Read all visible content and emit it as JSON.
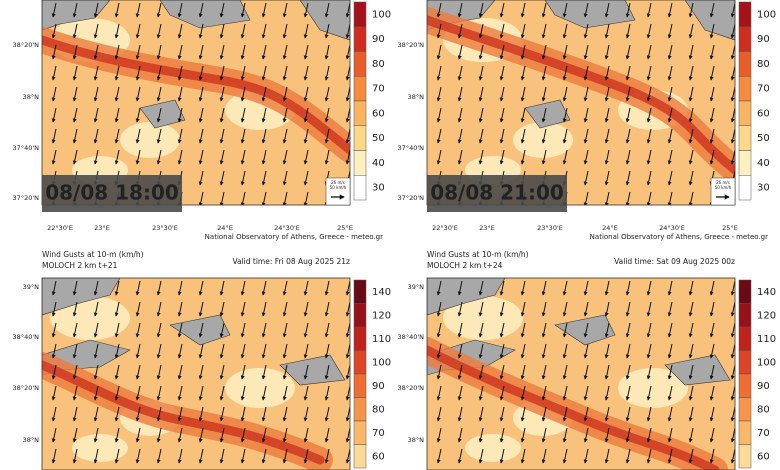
{
  "panels": [
    {
      "timestamp": "08/08 18:00",
      "credit": "National Observatory of Athens, Greece - meteo.gr",
      "lat_labels": [
        "38°20'N",
        "38°N",
        "37°40'N",
        "37°20'N"
      ],
      "lon_labels": [
        "22°30'E",
        "23°E",
        "23°30'E",
        "24°E",
        "24°30'E",
        "25°E"
      ],
      "colorbar": [
        100,
        90,
        80,
        70,
        60,
        50,
        40,
        30
      ],
      "legend": [
        "26 m/s",
        "50 km/h"
      ]
    },
    {
      "timestamp": "08/08 21:00",
      "credit": "National Observatory of Athens, Greece - meteo.gr",
      "lat_labels": [
        "38°20'N",
        "38°N",
        "37°40'N",
        "37°20'N"
      ],
      "lon_labels": [
        "22°30'E",
        "23°E",
        "23°30'E",
        "24°E",
        "24°30'E",
        "25°E"
      ],
      "colorbar": [
        100,
        90,
        80,
        70,
        60,
        50,
        40,
        30
      ],
      "legend": [
        "26 m/s",
        "50 km/h"
      ]
    },
    {
      "title": "Wind Gusts at 10-m (km/h)",
      "model": "MOLOCH 2 km t+21",
      "valid": "Valid time: Fri 08 Aug 2025 21z",
      "lat_labels": [
        "39°N",
        "38°40'N",
        "38°20'N",
        "38°N"
      ],
      "colorbar": [
        140,
        120,
        110,
        100,
        90,
        80,
        70,
        60
      ]
    },
    {
      "title": "Wind Gusts at 10-m (km/h)",
      "model": "MOLOCH 2 km t+24",
      "valid": "Valid time: Sat 09 Aug 2025 00z",
      "lat_labels": [
        "39°N",
        "38°40'N",
        "38°20'N",
        "38°N"
      ],
      "colorbar": [
        140,
        120,
        110,
        100,
        90,
        80,
        70,
        60
      ]
    }
  ]
}
